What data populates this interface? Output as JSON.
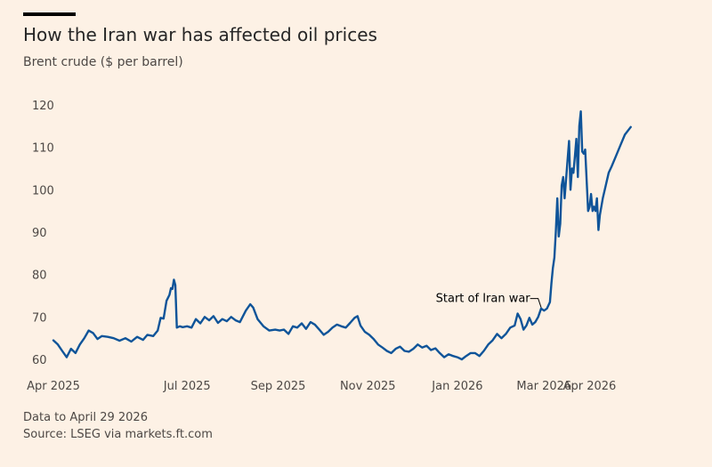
{
  "chart_data": {
    "type": "line",
    "title": "How the Iran war has affected oil prices",
    "subtitle": "Brent crude ($ per barrel)",
    "ylim": [
      60,
      120
    ],
    "yticks": [
      60,
      70,
      80,
      90,
      100,
      110,
      120
    ],
    "xlim": [
      "2025-04-01",
      "2026-05-01"
    ],
    "xticks": [
      {
        "date": "2025-04-01",
        "label": "Apr 2025"
      },
      {
        "date": "2025-07-01",
        "label": "Jul 2025"
      },
      {
        "date": "2025-09-01",
        "label": "Sep 2025"
      },
      {
        "date": "2025-11-01",
        "label": "Nov 2025"
      },
      {
        "date": "2026-01-01",
        "label": "Jan 2026"
      },
      {
        "date": "2026-03-01",
        "label": "Mar 2026"
      },
      {
        "date": "2026-04-01",
        "label": "Apr 2026"
      }
    ],
    "grid": false,
    "color": "#0f5499",
    "annotations": [
      {
        "text": "Start of Iran war",
        "date": "2026-02-28",
        "value": 71
      }
    ],
    "series": [
      {
        "name": "",
        "points": [
          [
            "2025-04-01",
            64.5
          ],
          [
            "2025-04-04",
            63.5
          ],
          [
            "2025-04-07",
            62.0
          ],
          [
            "2025-04-10",
            60.5
          ],
          [
            "2025-04-13",
            62.5
          ],
          [
            "2025-04-16",
            61.5
          ],
          [
            "2025-04-19",
            63.5
          ],
          [
            "2025-04-22",
            65.0
          ],
          [
            "2025-04-25",
            66.8
          ],
          [
            "2025-04-28",
            66.2
          ],
          [
            "2025-05-01",
            64.8
          ],
          [
            "2025-05-04",
            65.5
          ],
          [
            "2025-05-08",
            65.3
          ],
          [
            "2025-05-12",
            65.0
          ],
          [
            "2025-05-16",
            64.4
          ],
          [
            "2025-05-20",
            65.0
          ],
          [
            "2025-05-24",
            64.2
          ],
          [
            "2025-05-28",
            65.3
          ],
          [
            "2025-06-01",
            64.6
          ],
          [
            "2025-06-04",
            65.8
          ],
          [
            "2025-06-08",
            65.5
          ],
          [
            "2025-06-11",
            66.8
          ],
          [
            "2025-06-13",
            69.8
          ],
          [
            "2025-06-15",
            69.6
          ],
          [
            "2025-06-17",
            73.8
          ],
          [
            "2025-06-19",
            75.2
          ],
          [
            "2025-06-20",
            76.8
          ],
          [
            "2025-06-21",
            76.6
          ],
          [
            "2025-06-22",
            78.8
          ],
          [
            "2025-06-23",
            77.5
          ],
          [
            "2025-06-24",
            67.5
          ],
          [
            "2025-06-26",
            67.8
          ],
          [
            "2025-06-28",
            67.6
          ],
          [
            "2025-07-01",
            67.8
          ],
          [
            "2025-07-04",
            67.5
          ],
          [
            "2025-07-07",
            69.5
          ],
          [
            "2025-07-10",
            68.5
          ],
          [
            "2025-07-13",
            70.0
          ],
          [
            "2025-07-16",
            69.2
          ],
          [
            "2025-07-19",
            70.2
          ],
          [
            "2025-07-22",
            68.6
          ],
          [
            "2025-07-25",
            69.5
          ],
          [
            "2025-07-28",
            69.0
          ],
          [
            "2025-07-31",
            70.0
          ],
          [
            "2025-08-03",
            69.2
          ],
          [
            "2025-08-06",
            68.8
          ],
          [
            "2025-08-10",
            71.5
          ],
          [
            "2025-08-13",
            73.0
          ],
          [
            "2025-08-15",
            72.2
          ],
          [
            "2025-08-18",
            69.5
          ],
          [
            "2025-08-22",
            67.8
          ],
          [
            "2025-08-26",
            66.8
          ],
          [
            "2025-08-30",
            67.0
          ],
          [
            "2025-09-02",
            66.8
          ],
          [
            "2025-09-05",
            67.0
          ],
          [
            "2025-09-08",
            66.0
          ],
          [
            "2025-09-11",
            67.8
          ],
          [
            "2025-09-14",
            67.5
          ],
          [
            "2025-09-17",
            68.5
          ],
          [
            "2025-09-20",
            67.2
          ],
          [
            "2025-09-23",
            68.8
          ],
          [
            "2025-09-26",
            68.2
          ],
          [
            "2025-09-29",
            67.0
          ],
          [
            "2025-10-02",
            65.8
          ],
          [
            "2025-10-05",
            66.5
          ],
          [
            "2025-10-08",
            67.5
          ],
          [
            "2025-10-11",
            68.2
          ],
          [
            "2025-10-14",
            67.8
          ],
          [
            "2025-10-17",
            67.5
          ],
          [
            "2025-10-20",
            68.6
          ],
          [
            "2025-10-23",
            69.8
          ],
          [
            "2025-10-25",
            70.2
          ],
          [
            "2025-10-27",
            68.0
          ],
          [
            "2025-10-30",
            66.5
          ],
          [
            "2025-11-02",
            65.8
          ],
          [
            "2025-11-05",
            64.8
          ],
          [
            "2025-11-08",
            63.5
          ],
          [
            "2025-11-11",
            62.8
          ],
          [
            "2025-11-14",
            62.0
          ],
          [
            "2025-11-17",
            61.5
          ],
          [
            "2025-11-20",
            62.5
          ],
          [
            "2025-11-23",
            63.0
          ],
          [
            "2025-11-26",
            62.0
          ],
          [
            "2025-11-29",
            61.8
          ],
          [
            "2025-12-02",
            62.5
          ],
          [
            "2025-12-05",
            63.5
          ],
          [
            "2025-12-08",
            62.8
          ],
          [
            "2025-12-11",
            63.2
          ],
          [
            "2025-12-14",
            62.2
          ],
          [
            "2025-12-17",
            62.6
          ],
          [
            "2025-12-20",
            61.5
          ],
          [
            "2025-12-23",
            60.5
          ],
          [
            "2025-12-26",
            61.2
          ],
          [
            "2025-12-29",
            60.8
          ],
          [
            "2026-01-01",
            60.5
          ],
          [
            "2026-01-04",
            60.0
          ],
          [
            "2026-01-07",
            60.8
          ],
          [
            "2026-01-10",
            61.5
          ],
          [
            "2026-01-13",
            61.5
          ],
          [
            "2026-01-16",
            60.8
          ],
          [
            "2026-01-19",
            62.0
          ],
          [
            "2026-01-22",
            63.5
          ],
          [
            "2026-01-25",
            64.5
          ],
          [
            "2026-01-28",
            66.0
          ],
          [
            "2026-01-31",
            65.0
          ],
          [
            "2026-02-03",
            66.0
          ],
          [
            "2026-02-06",
            67.5
          ],
          [
            "2026-02-09",
            68.0
          ],
          [
            "2026-02-11",
            70.8
          ],
          [
            "2026-02-13",
            69.5
          ],
          [
            "2026-02-15",
            67.0
          ],
          [
            "2026-02-17",
            68.0
          ],
          [
            "2026-02-19",
            69.8
          ],
          [
            "2026-02-21",
            68.2
          ],
          [
            "2026-02-23",
            68.8
          ],
          [
            "2026-02-25",
            70.0
          ],
          [
            "2026-02-27",
            72.0
          ],
          [
            "2026-03-01",
            71.5
          ],
          [
            "2026-03-03",
            72.0
          ],
          [
            "2026-03-05",
            73.5
          ],
          [
            "2026-03-06",
            78.0
          ],
          [
            "2026-03-07",
            81.5
          ],
          [
            "2026-03-08",
            84.0
          ],
          [
            "2026-03-09",
            90.0
          ],
          [
            "2026-03-10",
            98.0
          ],
          [
            "2026-03-11",
            89.0
          ],
          [
            "2026-03-12",
            92.0
          ],
          [
            "2026-03-13",
            101.0
          ],
          [
            "2026-03-14",
            103.0
          ],
          [
            "2026-03-15",
            98.0
          ],
          [
            "2026-03-17",
            107.0
          ],
          [
            "2026-03-18",
            111.5
          ],
          [
            "2026-03-19",
            100.0
          ],
          [
            "2026-03-20",
            105.0
          ],
          [
            "2026-03-21",
            104.0
          ],
          [
            "2026-03-22",
            108.0
          ],
          [
            "2026-03-23",
            112.0
          ],
          [
            "2026-03-24",
            103.0
          ],
          [
            "2026-03-25",
            115.0
          ],
          [
            "2026-03-26",
            118.5
          ],
          [
            "2026-03-27",
            109.0
          ],
          [
            "2026-03-28",
            108.5
          ],
          [
            "2026-03-29",
            109.5
          ],
          [
            "2026-03-31",
            95.0
          ],
          [
            "2026-04-01",
            96.0
          ],
          [
            "2026-04-02",
            99.0
          ],
          [
            "2026-04-03",
            95.0
          ],
          [
            "2026-04-04",
            96.0
          ],
          [
            "2026-04-05",
            95.0
          ],
          [
            "2026-04-06",
            98.0
          ],
          [
            "2026-04-07",
            90.5
          ],
          [
            "2026-04-08",
            94.0
          ],
          [
            "2026-04-10",
            98.0
          ],
          [
            "2026-04-12",
            101.0
          ],
          [
            "2026-04-14",
            104.0
          ],
          [
            "2026-04-16",
            105.5
          ],
          [
            "2026-04-19",
            108.0
          ],
          [
            "2026-04-22",
            110.5
          ],
          [
            "2026-04-25",
            113.0
          ],
          [
            "2026-04-29",
            114.8
          ]
        ]
      }
    ]
  },
  "footer": {
    "note": "Data to April 29 2026",
    "source": "Source: LSEG via markets.ft.com"
  }
}
